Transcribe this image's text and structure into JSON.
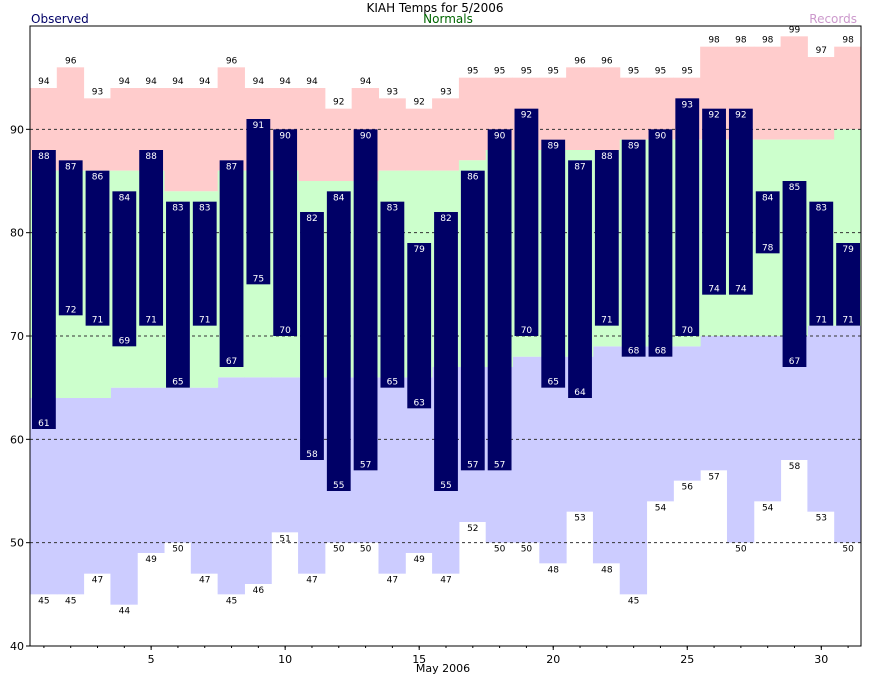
{
  "chart_data": {
    "type": "bar",
    "title": "KIAH Temps for 5/2006",
    "xlabel": "May 2006",
    "ylabel": "",
    "ylim": [
      40,
      100
    ],
    "legend": {
      "observed": "Observed",
      "normals": "Normals",
      "records": "Records"
    },
    "x_ticks": [
      "5",
      "10",
      "15",
      "20",
      "25",
      "30"
    ],
    "y_ticks": [
      "40",
      "50",
      "60",
      "70",
      "80",
      "90"
    ],
    "days": [
      1,
      2,
      3,
      4,
      5,
      6,
      7,
      8,
      9,
      10,
      11,
      12,
      13,
      14,
      15,
      16,
      17,
      18,
      19,
      20,
      21,
      22,
      23,
      24,
      25,
      26,
      27,
      28,
      29,
      30,
      31
    ],
    "observed_high": [
      88,
      87,
      86,
      84,
      88,
      83,
      83,
      87,
      91,
      90,
      82,
      84,
      90,
      83,
      79,
      82,
      86,
      90,
      92,
      89,
      87,
      88,
      89,
      90,
      93,
      92,
      92,
      84,
      85,
      83,
      79
    ],
    "observed_low": [
      61,
      72,
      71,
      69,
      71,
      65,
      71,
      67,
      75,
      70,
      58,
      55,
      57,
      65,
      63,
      55,
      57,
      57,
      70,
      65,
      64,
      71,
      68,
      68,
      70,
      74,
      74,
      78,
      67,
      71,
      71
    ],
    "record_high": [
      94,
      96,
      93,
      94,
      94,
      94,
      94,
      96,
      94,
      94,
      94,
      92,
      94,
      93,
      92,
      93,
      95,
      95,
      95,
      95,
      96,
      96,
      95,
      95,
      95,
      98,
      98,
      98,
      99,
      97,
      98
    ],
    "record_low": [
      45,
      45,
      47,
      44,
      49,
      50,
      47,
      45,
      46,
      51,
      47,
      50,
      50,
      47,
      49,
      47,
      52,
      50,
      50,
      48,
      53,
      48,
      45,
      54,
      56,
      57,
      50,
      54,
      58,
      53,
      50
    ],
    "normal_high": [
      86,
      86,
      86,
      86,
      86,
      84,
      84,
      86,
      86,
      86,
      85,
      85,
      85,
      86,
      86,
      86,
      87,
      88,
      88,
      88,
      88,
      88,
      89,
      89,
      89,
      89,
      89,
      89,
      89,
      89,
      90
    ],
    "normal_low": [
      64,
      64,
      64,
      65,
      65,
      65,
      65,
      66,
      66,
      66,
      66,
      66,
      66,
      66,
      66,
      67,
      67,
      67,
      68,
      68,
      68,
      69,
      69,
      69,
      69,
      70,
      70,
      70,
      70,
      71,
      71
    ],
    "colors": {
      "observed": "#000066",
      "normals": "#ccffcc",
      "record_high": "#ffcccc",
      "record_low": "#ccccff",
      "legend_observed": "#000066",
      "legend_normals": "#006600",
      "legend_records": "#cc99cc"
    },
    "grid_lines": [
      50,
      60,
      70,
      80,
      90
    ]
  }
}
